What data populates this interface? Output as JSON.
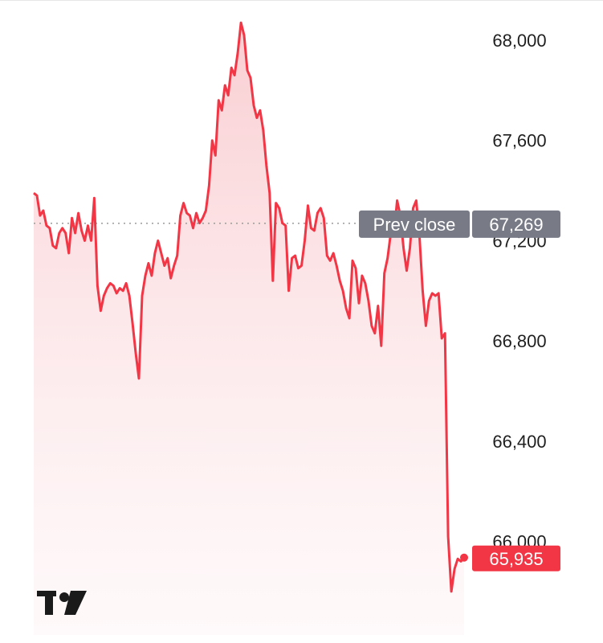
{
  "chart_data": {
    "type": "area",
    "title": "",
    "xlabel": "",
    "ylabel": "",
    "ylim": [
      65750,
      68150
    ],
    "yticks": [
      68000,
      67600,
      67200,
      66800,
      66400,
      66000
    ],
    "ytick_labels": [
      "68,000",
      "67,600",
      "67,200",
      "66,800",
      "66,400",
      "66,000"
    ],
    "prev_close": {
      "label": "Prev close",
      "value": 67269,
      "value_label": "67,269"
    },
    "last_price": {
      "value": 65935,
      "value_label": "65,935"
    },
    "colors": {
      "line": "#f23645",
      "fill_top": "#f9c9cd",
      "prev_badge": "#787b86",
      "last_badge": "#f23645"
    },
    "logo": "tradingview-logo",
    "series": [
      {
        "values": [
          67390,
          67380,
          67300,
          67320,
          67260,
          67250,
          67180,
          67170,
          67230,
          67250,
          67230,
          67150,
          67290,
          67230,
          67310,
          67240,
          67200,
          67260,
          67200,
          67370,
          67020,
          66920,
          66980,
          67010,
          67030,
          67020,
          66990,
          67010,
          67000,
          67030,
          66980,
          66870,
          66750,
          66650,
          66980,
          67060,
          67110,
          67060,
          67150,
          67200,
          67150,
          67100,
          67130,
          67050,
          67100,
          67140,
          67300,
          67350,
          67310,
          67300,
          67250,
          67310,
          67270,
          67290,
          67320,
          67420,
          67600,
          67540,
          67760,
          67720,
          67820,
          67780,
          67890,
          67860,
          67950,
          68070,
          68020,
          67880,
          67850,
          67740,
          67690,
          67720,
          67640,
          67500,
          67390,
          67040,
          67350,
          67330,
          67270,
          67260,
          67000,
          67130,
          67140,
          67090,
          67100,
          67200,
          67340,
          67250,
          67240,
          67310,
          67330,
          67290,
          67140,
          67120,
          67150,
          67100,
          67040,
          67000,
          66930,
          66890,
          67120,
          67090,
          66950,
          67060,
          67030,
          66960,
          66860,
          66830,
          66940,
          66780,
          67070,
          67130,
          67230,
          67230,
          67360,
          67300,
          67170,
          67080,
          67170,
          67330,
          67360,
          67220,
          67000,
          66860,
          66960,
          66990,
          66980,
          66990,
          66810,
          66830,
          66020,
          65800,
          65890,
          65930,
          65920,
          65935
        ]
      }
    ]
  }
}
